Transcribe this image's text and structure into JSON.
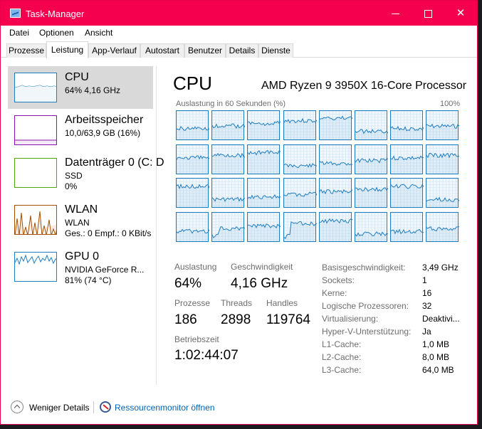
{
  "window": {
    "title": "Task-Manager"
  },
  "menu": [
    "Datei",
    "Optionen",
    "Ansicht"
  ],
  "tabs": [
    "Prozesse",
    "Leistung",
    "App-Verlauf",
    "Autostart",
    "Benutzer",
    "Details",
    "Dienste"
  ],
  "active_tab": "Leistung",
  "resources": [
    {
      "name": "CPU",
      "line1": "64% 4,16 GHz",
      "line2": "",
      "color": "#1f7dc1"
    },
    {
      "name": "Arbeitsspeicher",
      "line1": "10,0/63,9 GB (16%)",
      "line2": "",
      "color": "#8b12ae"
    },
    {
      "name": "Datenträger 0 (C: D",
      "line1": "SSD",
      "line2": "0%",
      "color": "#4da60c"
    },
    {
      "name": "WLAN",
      "line1": "WLAN",
      "line2": "Ges.: 0 Empf.: 0 KBit/s",
      "color": "#a74f01"
    },
    {
      "name": "GPU 0",
      "line1": "NVIDIA GeForce R...",
      "line2": "81% (74 °C)",
      "color": "#1f7dc1"
    }
  ],
  "cpu": {
    "title": "CPU",
    "model": "AMD Ryzen 9 3950X 16-Core Processor",
    "graph_caption": "Auslastung in 60 Sekunden (%)",
    "graph_max": "100%",
    "logical_core_count": 32,
    "stats": {
      "utilization_label": "Auslastung",
      "utilization": "64%",
      "speed_label": "Geschwindigkeit",
      "speed": "4,16 GHz",
      "processes_label": "Prozesse",
      "processes": "186",
      "threads_label": "Threads",
      "threads": "2898",
      "handles_label": "Handles",
      "handles": "119764",
      "uptime_label": "Betriebszeit",
      "uptime": "1:02:44:07"
    },
    "info": [
      {
        "label": "Basisgeschwindigkeit:",
        "value": "3,49 GHz"
      },
      {
        "label": "Sockets:",
        "value": "1"
      },
      {
        "label": "Kerne:",
        "value": "16"
      },
      {
        "label": "Logische Prozessoren:",
        "value": "32"
      },
      {
        "label": "Virtualisierung:",
        "value": "Deaktivi..."
      },
      {
        "label": "Hyper-V-Unterstützung:",
        "value": "Ja"
      },
      {
        "label": "L1-Cache:",
        "value": "1,0 MB"
      },
      {
        "label": "L2-Cache:",
        "value": "8,0 MB"
      },
      {
        "label": "L3-Cache:",
        "value": "64,0 MB"
      }
    ]
  },
  "footer": {
    "fewer_details": "Weniger Details",
    "resource_monitor": "Ressourcenmonitor öffnen"
  },
  "colors": {
    "titlebar": "#f5004f",
    "cpu": "#1f7dc1",
    "memory": "#8b12ae",
    "disk": "#4da60c",
    "network": "#a74f01",
    "link": "#0063b1"
  }
}
